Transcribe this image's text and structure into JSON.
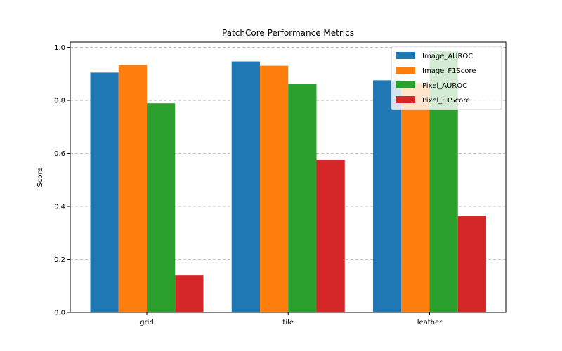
{
  "chart_data": {
    "type": "bar",
    "title": "PatchCore Performance Metrics",
    "xlabel": "",
    "ylabel": "Score",
    "ylim": [
      0,
      1.02
    ],
    "yticks": [
      "0.0",
      "0.2",
      "0.4",
      "0.6",
      "0.8",
      "1.0"
    ],
    "categories": [
      "grid",
      "tile",
      "leather"
    ],
    "grid": "y-dashed",
    "legend_position": "top-right",
    "series": [
      {
        "name": "Image_AUROC",
        "color": "#1f77b4",
        "values": [
          0.905,
          0.947,
          0.876
        ]
      },
      {
        "name": "Image_F1Score",
        "color": "#ff7f0e",
        "values": [
          0.934,
          0.931,
          0.866
        ]
      },
      {
        "name": "Pixel_AUROC",
        "color": "#2ca02c",
        "values": [
          0.789,
          0.861,
          0.985
        ]
      },
      {
        "name": "Pixel_F1Score",
        "color": "#d62728",
        "values": [
          0.14,
          0.575,
          0.365
        ]
      }
    ]
  }
}
